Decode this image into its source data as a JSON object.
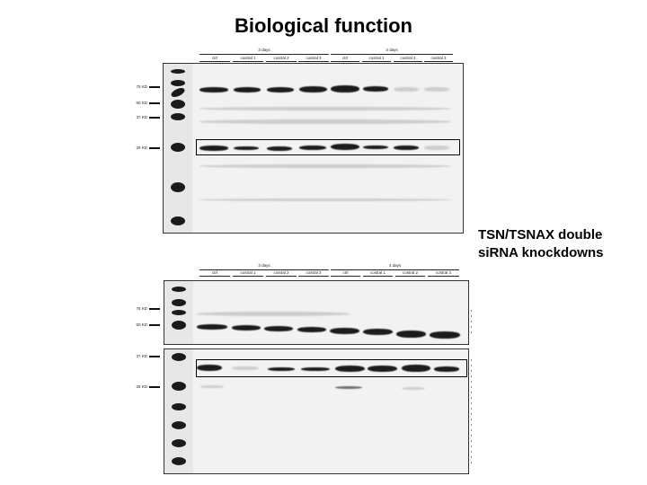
{
  "title": "Biological function",
  "caption": {
    "line1": "TSN/TSNAX double",
    "line2": "siRNA knockdowns"
  },
  "top_panel": {
    "groups": [
      {
        "label": "3 days"
      },
      {
        "label": "4 days"
      }
    ],
    "lanes": [
      {
        "label": "ctrl"
      },
      {
        "label": "costral 1"
      },
      {
        "label": "costral 2"
      },
      {
        "label": "costral 3"
      },
      {
        "label": "ctrl"
      },
      {
        "label": "costral 1"
      },
      {
        "label": "costral 2"
      },
      {
        "label": "costral 3"
      }
    ],
    "markers": [
      {
        "label": "75 KD"
      },
      {
        "label": "50 KD"
      },
      {
        "label": "37 KD"
      },
      {
        "label": "25 KD"
      }
    ]
  },
  "bottom_panel": {
    "groups": [
      {
        "label": "3 days"
      },
      {
        "label": "4 days"
      }
    ],
    "lanes": [
      {
        "label": "ctrl"
      },
      {
        "label": "costral 1"
      },
      {
        "label": "costral 2"
      },
      {
        "label": "costral 3"
      },
      {
        "label": "ctrl"
      },
      {
        "label": "costral 1"
      },
      {
        "label": "costral 2"
      },
      {
        "label": "costral 3"
      }
    ],
    "markers": [
      {
        "label": "75 KD"
      },
      {
        "label": "50 KD"
      },
      {
        "label": "37 KD"
      },
      {
        "label": "25 KD"
      }
    ]
  }
}
